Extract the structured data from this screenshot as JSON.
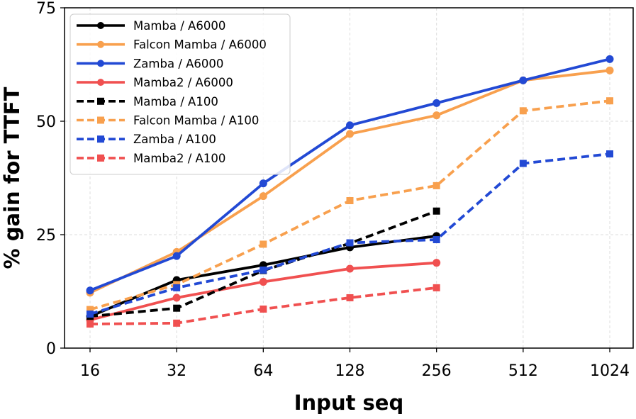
{
  "chart_data": {
    "type": "line",
    "title": "",
    "xlabel": "Input seq",
    "ylabel": "% gain for TTFT",
    "categories": [
      "16",
      "32",
      "64",
      "128",
      "256",
      "512",
      "1024"
    ],
    "ylim": [
      0,
      75
    ],
    "yticks": [
      0,
      25,
      50,
      75
    ],
    "grid": true,
    "legend_position": "top-left",
    "series": [
      {
        "name": "Mamba / A6000",
        "color": "#000000",
        "dash": "solid",
        "marker": "circle",
        "values": [
          7.0,
          15.0,
          18.3,
          22.2,
          24.7,
          null,
          null
        ]
      },
      {
        "name": "Falcon Mamba / A6000",
        "color": "#F8A04E",
        "dash": "solid",
        "marker": "circle",
        "values": [
          12.2,
          21.2,
          33.5,
          47.2,
          51.3,
          59.0,
          61.2
        ]
      },
      {
        "name": "Zamba / A6000",
        "color": "#2249D4",
        "dash": "solid",
        "marker": "circle",
        "values": [
          12.7,
          20.3,
          36.3,
          49.1,
          54.0,
          59.0,
          63.7
        ]
      },
      {
        "name": "Mamba2 / A6000",
        "color": "#F05050",
        "dash": "solid",
        "marker": "circle",
        "values": [
          6.2,
          11.1,
          14.6,
          17.5,
          18.8,
          null,
          null
        ]
      },
      {
        "name": "Mamba / A100",
        "color": "#000000",
        "dash": "dashed",
        "marker": "square",
        "values": [
          7.0,
          8.8,
          17.1,
          23.1,
          30.2,
          null,
          null
        ]
      },
      {
        "name": "Falcon Mamba / A100",
        "color": "#F8A04E",
        "dash": "dashed",
        "marker": "square",
        "values": [
          8.5,
          14.0,
          22.9,
          32.5,
          35.8,
          52.3,
          54.5
        ]
      },
      {
        "name": "Zamba / A100",
        "color": "#2249D4",
        "dash": "dashed",
        "marker": "square",
        "values": [
          7.5,
          13.3,
          17.2,
          23.2,
          23.9,
          40.7,
          42.8
        ]
      },
      {
        "name": "Mamba2 / A100",
        "color": "#F05050",
        "dash": "dashed",
        "marker": "square",
        "values": [
          5.3,
          5.5,
          8.6,
          11.1,
          13.3,
          null,
          null
        ]
      }
    ]
  }
}
